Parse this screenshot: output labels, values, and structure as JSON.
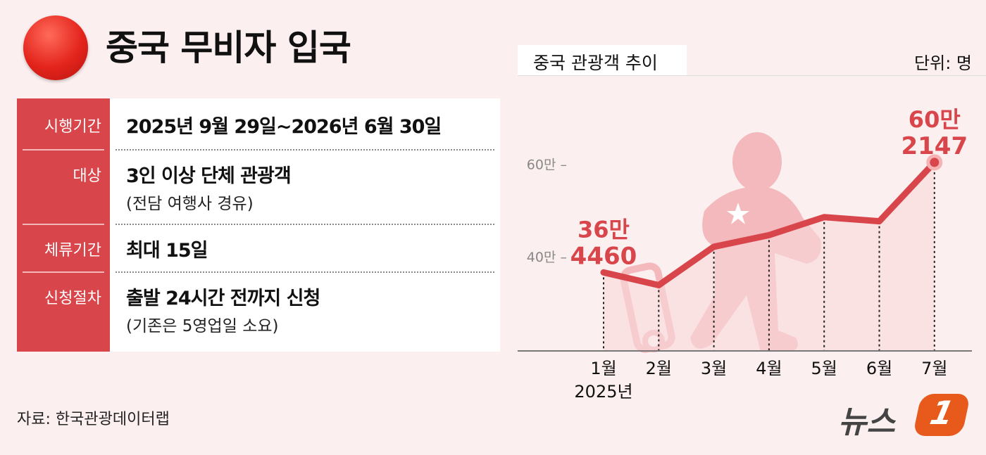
{
  "header": {
    "title": "중국 무비자 입국",
    "flag_icon": "china-flag-icon"
  },
  "table": {
    "rows": [
      {
        "label": "시행기간",
        "value": "2025년 9월 29일~2026년 6월 30일",
        "note": ""
      },
      {
        "label": "대상",
        "value": "3인 이상 단체 관광객",
        "note": "(전담 여행사 경유)"
      },
      {
        "label": "체류기간",
        "value": "최대 15일",
        "note": ""
      },
      {
        "label": "신청절차",
        "value": "출발 24시간 전까지 신청",
        "note": "(기존은 5영업일 소요)"
      }
    ]
  },
  "source": "자료: 한국관광데이터랩",
  "logo": "뉴스1",
  "colors": {
    "accent": "#d8464b",
    "background": "#fcefef",
    "line": "#d8464b"
  },
  "chart_data": {
    "type": "line",
    "title": "중국 관광객 추이",
    "unit": "단위: 명",
    "categories": [
      "1월",
      "2월",
      "3월",
      "4월",
      "5월",
      "6월",
      "7월"
    ],
    "x_sublabel": "2025년",
    "values": [
      364460,
      337000,
      420000,
      445000,
      484000,
      475000,
      602147
    ],
    "yticks": [
      {
        "value": 400000,
        "label": "40만 –"
      },
      {
        "value": 600000,
        "label": "60만 –"
      }
    ],
    "ylim": [
      195000,
      640000
    ],
    "annotations": [
      {
        "index": 0,
        "line1": "36만",
        "line2": "4460"
      },
      {
        "index": 6,
        "line1": "60만",
        "line2": "2147"
      }
    ],
    "grid": false
  }
}
